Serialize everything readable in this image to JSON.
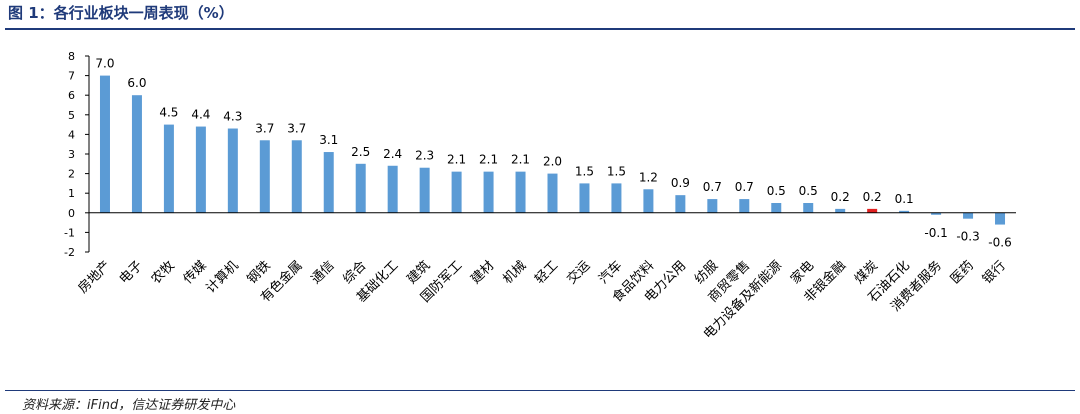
{
  "figure": {
    "title": "图 1：各行业板块一周表现（%）",
    "source": "资料来源：iFind，信达证券研发中心"
  },
  "colors": {
    "bar": "#5b9bd5",
    "highlight": "#e02020",
    "axis": "#000000",
    "title": "#1f3a7a"
  },
  "chart_data": {
    "type": "bar",
    "title": "",
    "xlabel": "",
    "ylabel": "",
    "ylim": [
      -2,
      8
    ],
    "yticks": [
      -2,
      -1,
      0,
      1,
      2,
      3,
      4,
      5,
      6,
      7,
      8
    ],
    "grid": false,
    "legend": "none",
    "categories": [
      "房地产",
      "电子",
      "农牧",
      "传媒",
      "计算机",
      "钢铁",
      "有色金属",
      "通信",
      "综合",
      "基础化工",
      "建筑",
      "国防军工",
      "建材",
      "机械",
      "轻工",
      "交运",
      "汽车",
      "食品饮料",
      "电力公用",
      "纺服",
      "商贸零售",
      "电力设备及新能源",
      "家电",
      "非银金融",
      "煤炭",
      "石油石化",
      "消费者服务",
      "医药",
      "银行"
    ],
    "values": [
      7.0,
      6.0,
      4.5,
      4.4,
      4.3,
      3.7,
      3.7,
      3.1,
      2.5,
      2.4,
      2.3,
      2.1,
      2.1,
      2.1,
      2.0,
      1.5,
      1.5,
      1.2,
      0.9,
      0.7,
      0.7,
      0.5,
      0.5,
      0.2,
      0.2,
      0.1,
      -0.1,
      -0.3,
      -0.6
    ],
    "data_labels": [
      "7.0",
      "6.0",
      "4.5",
      "4.4",
      "4.3",
      "3.7",
      "3.7",
      "3.1",
      "2.5",
      "2.4",
      "2.3",
      "2.1",
      "2.1",
      "2.1",
      "2.0",
      "1.5",
      "1.5",
      "1.2",
      "0.9",
      "0.7",
      "0.7",
      "0.5",
      "0.5",
      "0.2",
      "0.2",
      "0.1",
      "-0.1",
      "-0.3",
      "-0.6"
    ],
    "highlight_category": "煤炭"
  }
}
